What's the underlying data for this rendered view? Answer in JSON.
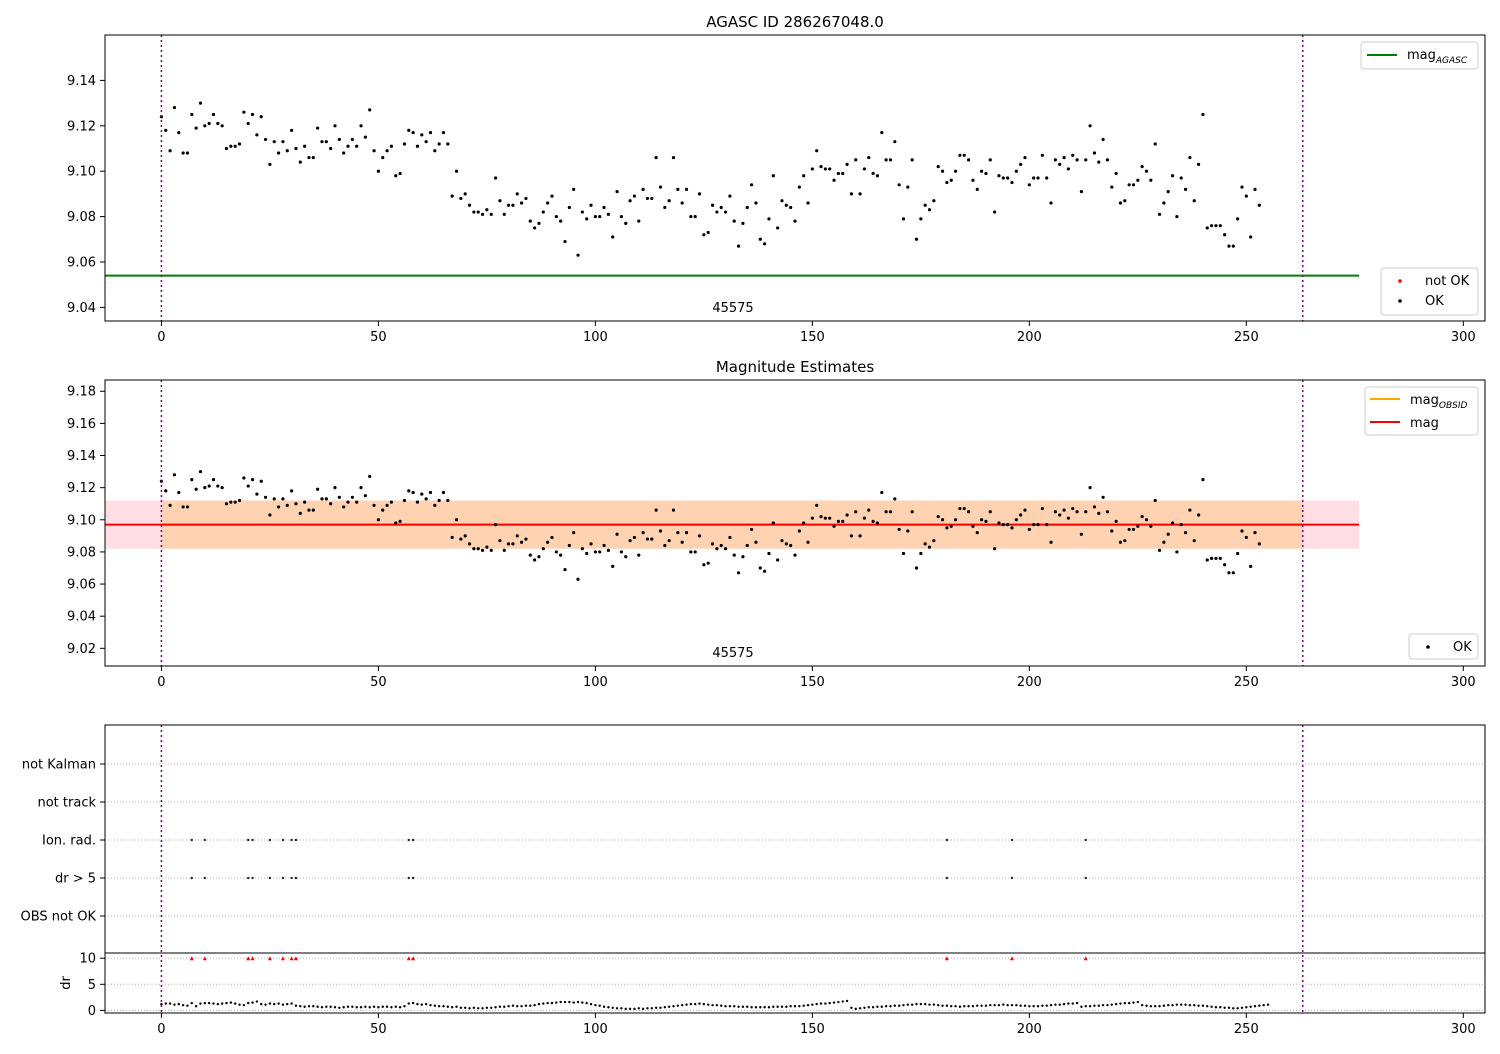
{
  "chart_data": [
    {
      "type": "scatter",
      "title": "AGASC ID 286267048.0",
      "xlim": [
        -13,
        305
      ],
      "ylim": [
        9.034,
        9.16
      ],
      "xticks": [
        "0",
        "50",
        "100",
        "150",
        "200",
        "250",
        "300"
      ],
      "yticks": [
        "9.04",
        "9.06",
        "9.08",
        "9.10",
        "9.12",
        "9.14"
      ],
      "obsid_label": "45575",
      "vlines": [
        0,
        263
      ],
      "hlines": [
        {
          "name": "mag_AGASC",
          "y": 9.054,
          "x": [
            -13,
            276
          ],
          "color": "#008000"
        }
      ],
      "legend_top": {
        "position": "top-right",
        "items": [
          {
            "name": "mag",
            "subscript": "AGASC",
            "color": "#008000",
            "kind": "line"
          }
        ]
      },
      "legend_bottom": {
        "position": "lower-right",
        "items": [
          {
            "name": "not OK",
            "color": "#ff0000",
            "kind": "dot"
          },
          {
            "name": "OK",
            "color": "#000000",
            "kind": "dot"
          }
        ]
      },
      "series_note": "OK points shared with panel 2 (mag_values)"
    },
    {
      "type": "scatter",
      "title": "Magnitude Estimates",
      "xlim": [
        -13,
        305
      ],
      "ylim": [
        9.009,
        9.187
      ],
      "xticks": [
        "0",
        "50",
        "100",
        "150",
        "200",
        "250",
        "300"
      ],
      "yticks": [
        "9.02",
        "9.04",
        "9.06",
        "9.08",
        "9.10",
        "9.12",
        "9.14",
        "9.16",
        "9.18"
      ],
      "obsid_label": "45575",
      "vlines": [
        0,
        263
      ],
      "mag": 9.097,
      "mag_band": [
        9.082,
        9.112
      ],
      "mag_obsid": 9.097,
      "band_x": [
        -13,
        276
      ],
      "legend_top": {
        "position": "top-right",
        "items": [
          {
            "name": "mag",
            "subscript": "OBSID",
            "color": "#ffa500",
            "kind": "line"
          },
          {
            "name": "mag",
            "subscript": "",
            "color": "#ff0000",
            "kind": "line"
          }
        ]
      },
      "legend_bottom": {
        "position": "lower-right",
        "items": [
          {
            "name": "OK",
            "color": "#000000",
            "kind": "dot"
          }
        ]
      }
    },
    {
      "type": "scatter",
      "title": "",
      "xlim": [
        -13,
        305
      ],
      "xticks": [
        "0",
        "50",
        "100",
        "150",
        "200",
        "250",
        "300"
      ],
      "flag_labels": [
        "not Kalman",
        "not track",
        "Ion. rad.",
        "dr > 5",
        "OBS not OK"
      ],
      "flag_indices": [
        7,
        10,
        20,
        21,
        25,
        28,
        30,
        31,
        57,
        58,
        181,
        196,
        213
      ],
      "ylabel_dr": "dr",
      "dr_ticks": [
        "0",
        "5",
        "10"
      ],
      "dr_ylim": [
        -0.5,
        11
      ],
      "vlines": [
        0,
        263
      ]
    }
  ],
  "mag_values": [
    9.124,
    9.118,
    9.109,
    9.128,
    9.117,
    9.108,
    9.108,
    9.125,
    9.119,
    9.13,
    9.12,
    9.121,
    9.125,
    9.121,
    9.12,
    9.11,
    9.111,
    9.111,
    9.112,
    9.126,
    9.121,
    9.125,
    9.116,
    9.124,
    9.114,
    9.103,
    9.113,
    9.108,
    9.113,
    9.109,
    9.118,
    9.11,
    9.104,
    9.111,
    9.106,
    9.106,
    9.119,
    9.113,
    9.113,
    9.11,
    9.12,
    9.114,
    9.108,
    9.111,
    9.114,
    9.111,
    9.12,
    9.115,
    9.127,
    9.109,
    9.1,
    9.106,
    9.109,
    9.111,
    9.098,
    9.099,
    9.112,
    9.118,
    9.117,
    9.111,
    9.116,
    9.113,
    9.117,
    9.109,
    9.112,
    9.117,
    9.112,
    9.089,
    9.1,
    9.088,
    9.09,
    9.085,
    9.082,
    9.082,
    9.081,
    9.083,
    9.081,
    9.097,
    9.087,
    9.081,
    9.085,
    9.085,
    9.09,
    9.086,
    9.088,
    9.078,
    9.075,
    9.077,
    9.082,
    9.086,
    9.089,
    9.08,
    9.078,
    9.069,
    9.084,
    9.092,
    9.063,
    9.082,
    9.079,
    9.085,
    9.08,
    9.08,
    9.084,
    9.081,
    9.071,
    9.091,
    9.08,
    9.077,
    9.087,
    9.089,
    9.078,
    9.092,
    9.088,
    9.088,
    9.106,
    9.093,
    9.084,
    9.087,
    9.106,
    9.092,
    9.086,
    9.092,
    9.08,
    9.08,
    9.09,
    9.072,
    9.073,
    9.085,
    9.082,
    9.084,
    9.082,
    9.089,
    9.078,
    9.067,
    9.077,
    9.084,
    9.094,
    9.086,
    9.07,
    9.068,
    9.079,
    9.098,
    9.075,
    9.087,
    9.085,
    9.084,
    9.078,
    9.093,
    9.098,
    9.086,
    9.101,
    9.109,
    9.102,
    9.101,
    9.101,
    9.096,
    9.099,
    9.099,
    9.103,
    9.09,
    9.105,
    9.09,
    9.101,
    9.106,
    9.099,
    9.098,
    9.117,
    9.105,
    9.105,
    9.113,
    9.094,
    9.079,
    9.093,
    9.105,
    9.07,
    9.079,
    9.085,
    9.083,
    9.087,
    9.102,
    9.1,
    9.095,
    9.096,
    9.1,
    9.107,
    9.107,
    9.105,
    9.096,
    9.092,
    9.1,
    9.099,
    9.105,
    9.082,
    9.098,
    9.097,
    9.097,
    9.095,
    9.1,
    9.103,
    9.106,
    9.094,
    9.097,
    9.097,
    9.107,
    9.097,
    9.086,
    9.105,
    9.103,
    9.106,
    9.101,
    9.107,
    9.105,
    9.091,
    9.105,
    9.12,
    9.108,
    9.104,
    9.114,
    9.105,
    9.093,
    9.099,
    9.086,
    9.087,
    9.094,
    9.094,
    9.096,
    9.102,
    9.1,
    9.096,
    9.112,
    9.081,
    9.086,
    9.091,
    9.098,
    9.08,
    9.097,
    9.092,
    9.106,
    9.087,
    9.103,
    9.125,
    9.075,
    9.076,
    9.076,
    9.076,
    9.072,
    9.067,
    9.067,
    9.079,
    9.093,
    9.089,
    9.071,
    9.092,
    9.085
  ],
  "dr_values": [
    1.2,
    1.3,
    1.3,
    1.1,
    1.2,
    1.0,
    0.9,
    1.4,
    0.8,
    1.3,
    1.4,
    1.4,
    1.3,
    1.2,
    1.3,
    1.4,
    1.5,
    1.3,
    1.1,
    1.0,
    1.4,
    1.5,
    1.7,
    1.2,
    1.1,
    1.3,
    1.2,
    1.3,
    1.1,
    1.2,
    1.3,
    0.9,
    0.8,
    0.7,
    0.8,
    0.8,
    0.7,
    0.6,
    0.7,
    0.7,
    0.6,
    0.5,
    0.6,
    0.7,
    0.7,
    0.6,
    0.6,
    0.7,
    0.6,
    0.7,
    0.6,
    0.7,
    0.7,
    0.6,
    0.7,
    0.6,
    0.8,
    1.3,
    1.4,
    1.2,
    1.1,
    1.2,
    1.0,
    0.9,
    0.8,
    0.8,
    0.7,
    0.6,
    0.7,
    0.5,
    0.5,
    0.4,
    0.5,
    0.4,
    0.4,
    0.5,
    0.5,
    0.6,
    0.7,
    0.7,
    0.8,
    0.9,
    0.8,
    0.8,
    0.9,
    0.9,
    1.0,
    1.2,
    1.3,
    1.4,
    1.4,
    1.5,
    1.6,
    1.6,
    1.6,
    1.5,
    1.6,
    1.5,
    1.4,
    1.2,
    1.0,
    0.9,
    0.7,
    0.6,
    0.5,
    0.4,
    0.4,
    0.3,
    0.3,
    0.3,
    0.4,
    0.3,
    0.4,
    0.4,
    0.5,
    0.5,
    0.6,
    0.7,
    0.8,
    0.9,
    1.0,
    1.1,
    1.2,
    1.2,
    1.3,
    1.2,
    1.1,
    1.0,
    1.0,
    0.9,
    0.8,
    0.8,
    0.8,
    0.7,
    0.7,
    0.7,
    0.6,
    0.6,
    0.6,
    0.6,
    0.6,
    0.7,
    0.7,
    0.7,
    0.7,
    0.8,
    0.8,
    0.8,
    0.9,
    1.0,
    1.1,
    1.2,
    1.3,
    1.3,
    1.4,
    1.5,
    1.6,
    1.7,
    1.8,
    0.5,
    0.3,
    0.4,
    0.5,
    0.6,
    0.6,
    0.7,
    0.7,
    0.8,
    0.8,
    0.9,
    0.9,
    1.0,
    1.1,
    1.1,
    1.2,
    1.2,
    1.2,
    1.1,
    1.1,
    1.0,
    0.9,
    0.9,
    0.8,
    0.8,
    0.7,
    0.8,
    0.8,
    0.8,
    0.9,
    0.9,
    0.9,
    1.0,
    1.0,
    1.0,
    1.1,
    1.0,
    1.0,
    1.0,
    0.9,
    0.9,
    0.8,
    0.8,
    0.8,
    0.9,
    0.9,
    1.0,
    1.1,
    1.1,
    1.2,
    1.3,
    1.3,
    1.4,
    0.7,
    0.8,
    0.8,
    0.9,
    0.9,
    1.0,
    1.0,
    1.1,
    1.2,
    1.3,
    1.4,
    1.4,
    1.5,
    1.6,
    1.0,
    0.9,
    0.8,
    0.8,
    0.8,
    0.9,
    1.0,
    1.0,
    1.1,
    1.1,
    1.1,
    1.0,
    1.0,
    0.9,
    0.9,
    0.8,
    0.7,
    0.6,
    0.6,
    0.5,
    0.5,
    0.4,
    0.4,
    0.5,
    0.6,
    0.7,
    0.8,
    0.9,
    1.0,
    1.1
  ]
}
